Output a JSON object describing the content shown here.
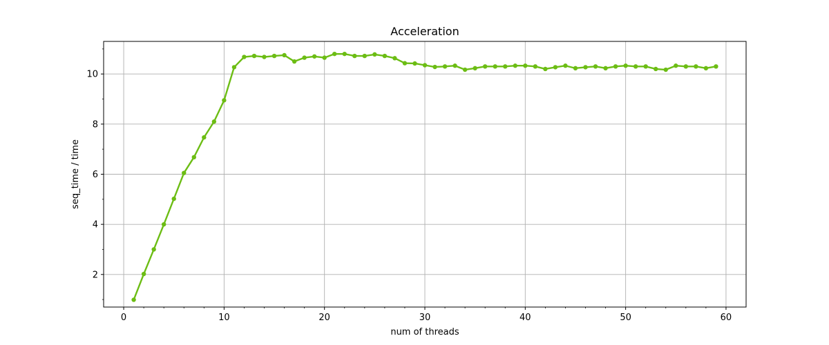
{
  "chart_data": {
    "type": "line",
    "title": "Acceleration",
    "xlabel": "num of threads",
    "ylabel": "seq_time / time",
    "xlim": [
      -2,
      62
    ],
    "ylim": [
      0.7,
      11.3
    ],
    "x_ticks": [
      0,
      10,
      20,
      30,
      40,
      50,
      60
    ],
    "y_ticks": [
      2,
      4,
      6,
      8,
      10
    ],
    "x_minor_ticks": [
      2,
      4,
      6,
      8,
      12,
      14,
      16,
      18,
      22,
      24,
      26,
      28,
      32,
      34,
      36,
      38,
      42,
      44,
      46,
      48,
      52,
      54,
      56,
      58
    ],
    "y_minor_ticks": [
      1,
      3,
      5,
      7,
      9,
      11
    ],
    "grid": true,
    "colors": {
      "line": "#6cbd14",
      "grid": "#b0b0b0",
      "axes": "#000000"
    },
    "series": [
      {
        "x": [
          1,
          2,
          3,
          4,
          5,
          6,
          7,
          8,
          9,
          10,
          11,
          12,
          13,
          14,
          15,
          16,
          17,
          18,
          19,
          20,
          21,
          22,
          23,
          24,
          25,
          26,
          27,
          28,
          29,
          30,
          31,
          32,
          33,
          34,
          35,
          36,
          37,
          38,
          39,
          40,
          41,
          42,
          43,
          44,
          45,
          46,
          47,
          48,
          49,
          50,
          51,
          52,
          53,
          54,
          55,
          56,
          57,
          58,
          59
        ],
        "values": [
          0.99,
          2.02,
          3.0,
          4.0,
          5.02,
          6.05,
          6.68,
          7.47,
          8.1,
          8.95,
          10.27,
          10.68,
          10.72,
          10.68,
          10.72,
          10.75,
          10.5,
          10.65,
          10.7,
          10.65,
          10.8,
          10.8,
          10.72,
          10.72,
          10.78,
          10.72,
          10.63,
          10.43,
          10.42,
          10.35,
          10.28,
          10.3,
          10.33,
          10.17,
          10.23,
          10.3,
          10.3,
          10.3,
          10.33,
          10.33,
          10.3,
          10.2,
          10.27,
          10.33,
          10.23,
          10.27,
          10.3,
          10.23,
          10.3,
          10.33,
          10.3,
          10.3,
          10.2,
          10.17,
          10.33,
          10.3,
          10.3,
          10.23,
          10.3
        ]
      }
    ]
  }
}
